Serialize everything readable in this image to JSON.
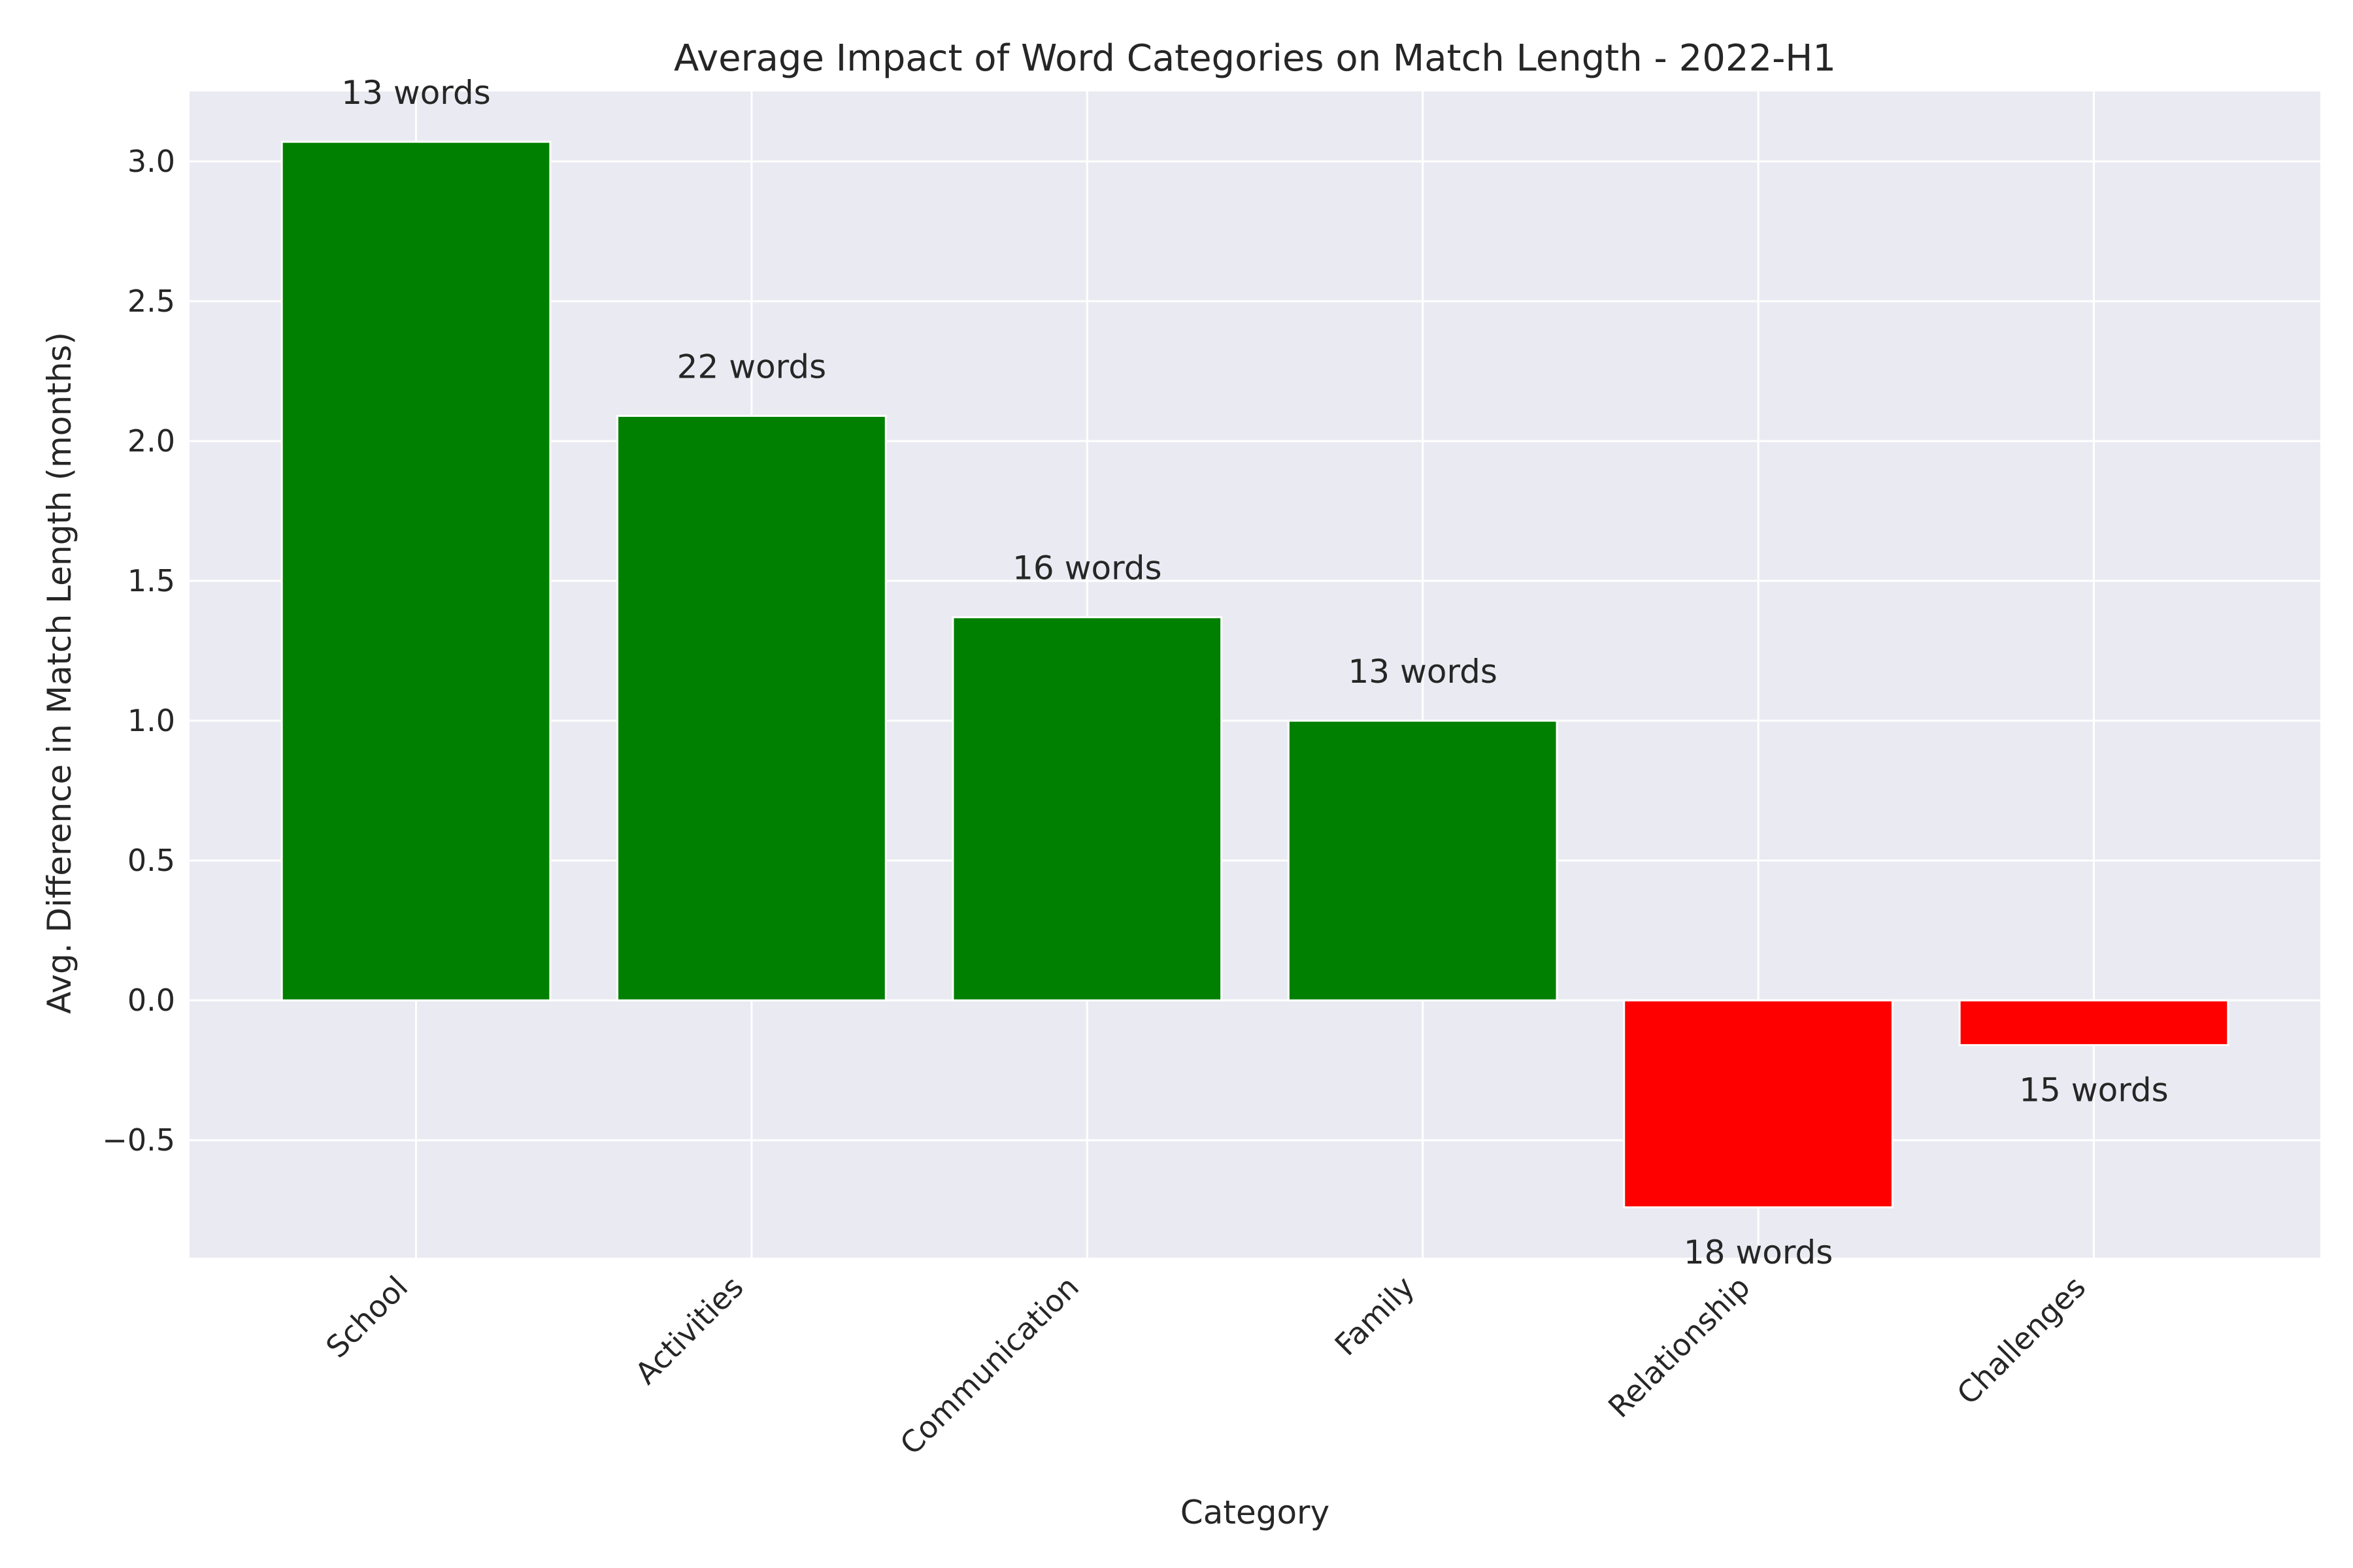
{
  "chart_data": {
    "type": "bar",
    "title": "Average Impact of Word Categories on Match Length - 2022-H1",
    "xlabel": "Category",
    "ylabel": "Avg. Difference in Match Length (months)",
    "categories": [
      "School",
      "Activities",
      "Communication",
      "Family",
      "Relationship",
      "Challenges"
    ],
    "values": [
      3.07,
      2.09,
      1.37,
      1.0,
      -0.74,
      -0.16
    ],
    "bar_labels": [
      "13 words",
      "22 words",
      "16 words",
      "13 words",
      "18 words",
      "15 words"
    ],
    "bar_colors": [
      "#008000",
      "#008000",
      "#008000",
      "#008000",
      "#ff0000",
      "#ff0000"
    ],
    "ylim": [
      -0.92,
      3.25
    ],
    "yticks": [
      -0.5,
      0.0,
      0.5,
      1.0,
      1.5,
      2.0,
      2.5,
      3.0
    ],
    "ytick_labels": [
      "−0.5",
      "0.0",
      "0.5",
      "1.0",
      "1.5",
      "2.0",
      "2.5",
      "3.0"
    ],
    "grid": true,
    "background_color": "#eaeaf2",
    "grid_color": "#ffffff"
  }
}
